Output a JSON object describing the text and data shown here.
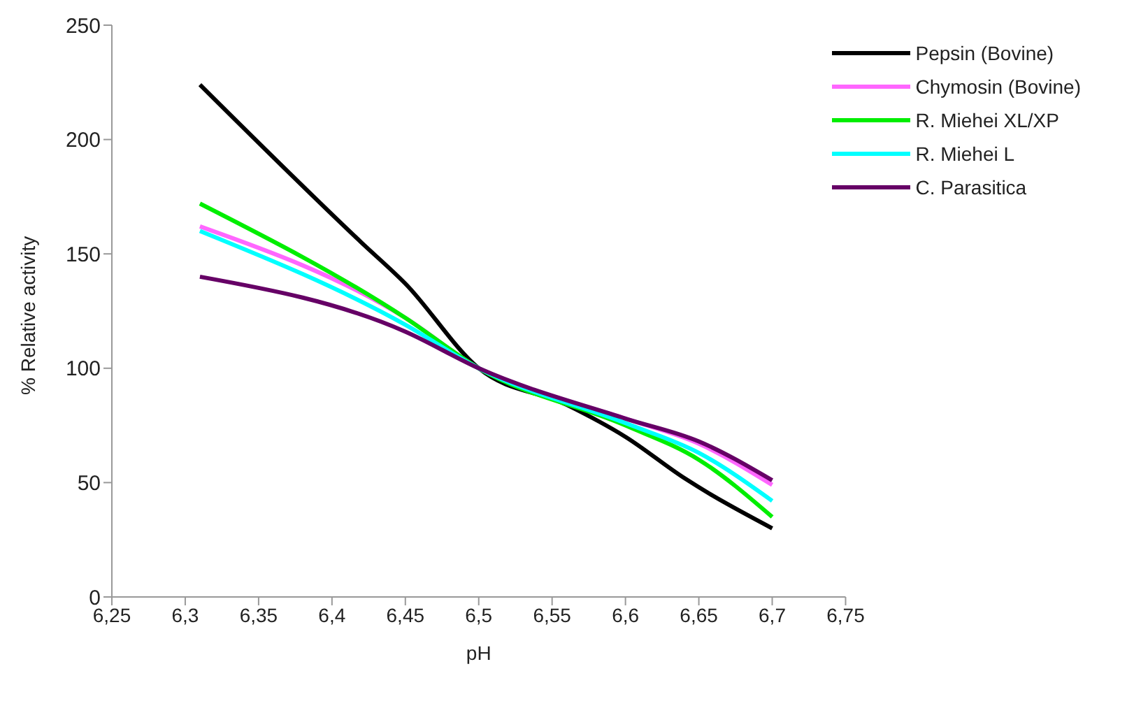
{
  "chart_data": {
    "type": "line",
    "xlabel": "pH",
    "ylabel": "% Relative activity",
    "xlim": [
      6.25,
      6.75
    ],
    "xticks": [
      {
        "value": 6.25,
        "label": "6,25"
      },
      {
        "value": 6.3,
        "label": "6,3"
      },
      {
        "value": 6.35,
        "label": "6,35"
      },
      {
        "value": 6.4,
        "label": "6,4"
      },
      {
        "value": 6.45,
        "label": "6,45"
      },
      {
        "value": 6.5,
        "label": "6,5"
      },
      {
        "value": 6.55,
        "label": "6,55"
      },
      {
        "value": 6.6,
        "label": "6,6"
      },
      {
        "value": 6.65,
        "label": "6,65"
      },
      {
        "value": 6.7,
        "label": "6,7"
      },
      {
        "value": 6.75,
        "label": "6,75"
      }
    ],
    "ylim": [
      0,
      250
    ],
    "yticks": [
      0,
      50,
      100,
      150,
      200,
      250
    ],
    "grid": false,
    "legend": "top right",
    "marker": "none",
    "line_style": "solid",
    "x": [
      6.31,
      6.45,
      6.5,
      6.6,
      6.65,
      6.7
    ],
    "series": [
      {
        "name": "Pepsin (Bovine)",
        "color": "#000000",
        "x": [
          6.31,
          6.42,
          6.45,
          6.5,
          6.56,
          6.6,
          6.64,
          6.7
        ],
        "values": [
          224,
          155,
          137,
          100,
          84,
          70,
          52,
          30
        ]
      },
      {
        "name": "Chymosin (Bovine)",
        "color": "#ff66ff",
        "values": [
          162,
          122,
          100,
          78,
          67,
          49
        ]
      },
      {
        "name": "R. Miehei XL/XP",
        "color": "#00ee00",
        "values": [
          172,
          122,
          100,
          75,
          60,
          35
        ]
      },
      {
        "name": "R. Miehei L",
        "color": "#00ffff",
        "values": [
          160,
          119,
          100,
          76,
          63,
          42
        ]
      },
      {
        "name": "C. Parasitica",
        "color": "#660066",
        "values": [
          140,
          116,
          100,
          78,
          68,
          51
        ]
      }
    ]
  }
}
